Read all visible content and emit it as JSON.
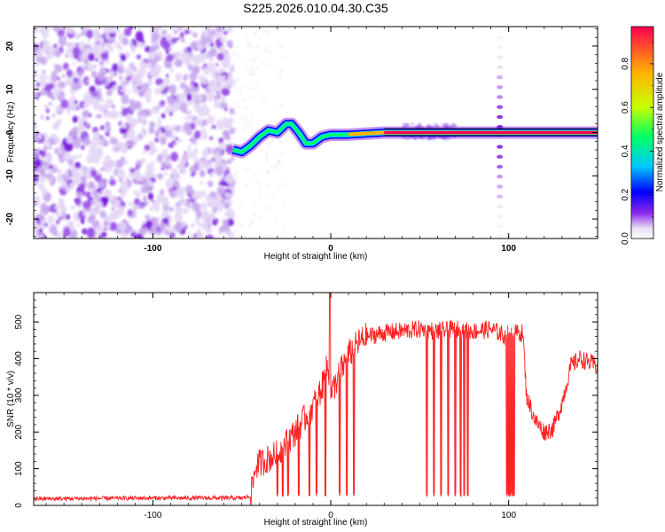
{
  "title": "S225.2026.010.04.30.C35",
  "chart_data": [
    {
      "type": "heatmap",
      "xlabel": "Height of straight line (km)",
      "ylabel": "Frequency (Hz)",
      "xlim": [
        -167,
        150
      ],
      "ylim": [
        -24.5,
        24.5
      ],
      "xticks": [
        -100,
        0,
        100
      ],
      "yticks": [
        -20,
        -10,
        0,
        10,
        20
      ],
      "colorbar": {
        "label": "Normalized spectral amplitude",
        "range": [
          0.0,
          0.97
        ],
        "ticks": [
          0.0,
          0.2,
          0.4,
          0.6,
          0.8
        ],
        "colormap": "rainbow",
        "colors": [
          "#ffffff",
          "#e8dcf4",
          "#8c28ea",
          "#0000ff",
          "#00c8ff",
          "#00ff64",
          "#c8ff00",
          "#ffb400",
          "#ff0050"
        ]
      },
      "noise_region_x": [
        -167,
        -55
      ],
      "ridge": {
        "x": [
          -55,
          -50,
          -45,
          -40,
          -35,
          -30,
          -25,
          -22,
          -18,
          -14,
          -10,
          -5,
          0,
          10,
          30,
          60,
          90,
          120,
          150
        ],
        "freq": [
          -4,
          -4.5,
          -3,
          -1,
          0.5,
          0,
          2,
          2,
          0,
          -2.5,
          -2.5,
          -1,
          -0.5,
          -0.5,
          0,
          0,
          0,
          0,
          0
        ]
      },
      "harmonic_column_x": 95
    },
    {
      "type": "line",
      "xlabel": "Height of straight line (km)",
      "ylabel": "SNR (10 * v/v)",
      "xlim": [
        -167,
        150
      ],
      "ylim": [
        0,
        580
      ],
      "xticks": [
        -100,
        0,
        100
      ],
      "yticks": [
        0,
        100,
        200,
        300,
        400,
        500
      ],
      "series": [
        {
          "color": "#ff2020",
          "x": [
            -167,
            -100,
            -50,
            -45,
            -42,
            -30,
            -20,
            -10,
            -5,
            -2,
            0,
            5,
            10,
            15,
            20,
            30,
            40,
            50,
            60,
            70,
            80,
            90,
            95,
            98,
            100,
            105,
            108,
            110,
            115,
            120,
            125,
            130,
            135,
            140,
            145,
            150
          ],
          "y": [
            18,
            20,
            20,
            25,
            110,
            140,
            200,
            270,
            320,
            380,
            300,
            360,
            410,
            440,
            460,
            470,
            475,
            480,
            475,
            480,
            475,
            480,
            470,
            460,
            470,
            470,
            470,
            300,
            230,
            200,
            210,
            280,
            380,
            400,
            390,
            380
          ]
        }
      ],
      "spikes": [
        {
          "x": -0.5,
          "y": 580
        }
      ],
      "dropouts_x": [
        -30,
        -27,
        -24,
        -18,
        -12,
        -8,
        -3,
        5,
        9,
        13,
        54,
        58,
        62,
        66,
        70,
        73,
        75,
        77,
        99,
        100,
        101,
        102,
        103
      ]
    }
  ]
}
